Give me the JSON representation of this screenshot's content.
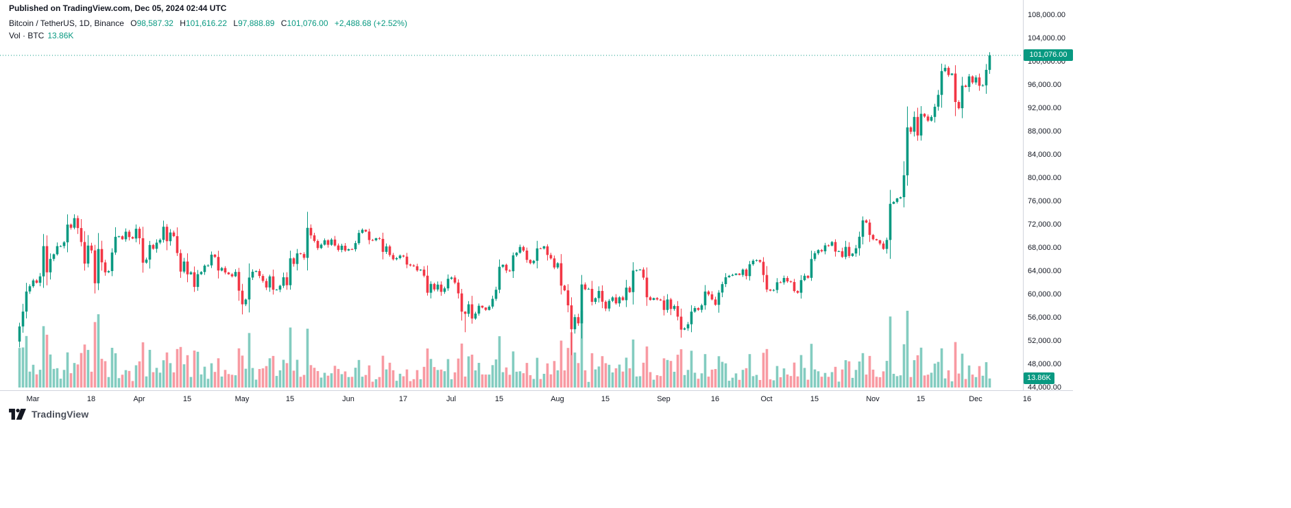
{
  "published_line": "Published on TradingView.com, Dec 05, 2024 02:44 UTC",
  "legend": {
    "title": "Bitcoin / TetherUS, 1D, Binance",
    "open_label": "O",
    "open": "98,587.32",
    "high_label": "H",
    "high": "101,616.22",
    "low_label": "L",
    "low": "97,888.89",
    "close_label": "C",
    "close": "101,076.00",
    "change": "+2,488.68 (+2.52%)"
  },
  "volume_legend": {
    "label": "Vol · BTC",
    "value": "13.86K"
  },
  "price_axis": {
    "current_price_label": "101,076.00"
  },
  "volume_axis": {
    "current_volume_label": "13.86K"
  },
  "footer": {
    "brand": "TradingView"
  },
  "colors": {
    "up": "#089981",
    "down": "#f23645",
    "up_vol": "rgba(8,153,129,0.5)",
    "down_vol": "rgba(242,54,69,0.5)",
    "text": "#131722",
    "axis_border": "#d1d4dc"
  },
  "chart_data": {
    "type": "candlestick",
    "title": "Bitcoin / TetherUS, 1D, Binance",
    "symbol": "Bitcoin / TetherUS",
    "interval": "1D",
    "exchange": "Binance",
    "start_date": "2024-02-26",
    "end_date": "2024-12-05",
    "ylim": [
      44000,
      109000
    ],
    "current_price": 101076.0,
    "last_candle": {
      "open": 98587.32,
      "high": 101616.22,
      "low": 97888.89,
      "close": 101076.0,
      "change": 2488.68,
      "change_pct": 2.52
    },
    "first_open": 51900,
    "daily_closes": [
      54500,
      57050,
      60500,
      61400,
      62400,
      62000,
      63100,
      68300,
      63800,
      66100,
      66900,
      68300,
      68300,
      68950,
      72000,
      71450,
      73100,
      71400,
      69000,
      65300,
      68390,
      67550,
      61900,
      67800,
      65500,
      63800,
      64000,
      67200,
      69900,
      69990,
      69470,
      70780,
      69850,
      69600,
      71280,
      69650,
      65450,
      65980,
      68500,
      67840,
      68900,
      69360,
      71620,
      69140,
      70630,
      70010,
      67100,
      63920,
      65650,
      63450,
      63800,
      61280,
      63470,
      63850,
      64940,
      64980,
      66820,
      66430,
      64100,
      64530,
      63760,
      63460,
      63110,
      63860,
      60640,
      58300,
      59120,
      62890,
      63890,
      64010,
      63160,
      62310,
      61190,
      63090,
      60800,
      60820,
      61480,
      62940,
      61580,
      66200,
      65230,
      67050,
      66930,
      66290,
      71440,
      70150,
      69180,
      67960,
      68540,
      69290,
      68510,
      69420,
      68400,
      67640,
      68360,
      67540,
      67760,
      67750,
      68810,
      70570,
      71100,
      70800,
      69340,
      69310,
      69650,
      69540,
      67310,
      68250,
      66770,
      66040,
      66230,
      66670,
      66500,
      65140,
      64970,
      64830,
      64130,
      64260,
      63210,
      60280,
      61800,
      60850,
      61680,
      60430,
      61030,
      62680,
      62900,
      62030,
      60170,
      57040,
      56660,
      58300,
      55850,
      56710,
      58050,
      57740,
      57340,
      57900,
      59230,
      60800,
      64740,
      65090,
      64100,
      63980,
      66710,
      67160,
      68150,
      67530,
      65930,
      65370,
      65780,
      67910,
      67900,
      68260,
      66780,
      66190,
      64630,
      65350,
      61500,
      60700,
      58120,
      54020,
      56100,
      55030,
      61710,
      60880,
      60950,
      58720,
      59350,
      60600,
      58740,
      57560,
      58890,
      59480,
      58460,
      59490,
      59010,
      61170,
      60380,
      64090,
      64170,
      64270,
      62880,
      59500,
      59040,
      59360,
      59120,
      58970,
      57330,
      59130,
      57490,
      58000,
      56180,
      53950,
      54160,
      54870,
      57040,
      57650,
      57340,
      58130,
      60500,
      60010,
      59130,
      58210,
      60310,
      61760,
      62940,
      63200,
      63350,
      63580,
      63340,
      64270,
      63150,
      65180,
      65790,
      65890,
      65600,
      63330,
      60840,
      60650,
      60750,
      62080,
      62060,
      62820,
      62230,
      62130,
      60580,
      60280,
      62450,
      63200,
      62850,
      66080,
      67070,
      67610,
      67400,
      68420,
      68380,
      69000,
      67350,
      67410,
      66430,
      68160,
      66600,
      67020,
      67930,
      69910,
      72720,
      72340,
      70210,
      69480,
      69290,
      68740,
      67810,
      69360,
      75570,
      75900,
      76500,
      76700,
      80470,
      88700,
      87950,
      90490,
      87300,
      91030,
      90560,
      89840,
      90500,
      92250,
      94290,
      98380,
      98930,
      97700,
      97950,
      93060,
      91990,
      95870,
      95650,
      97460,
      96410,
      97280,
      95850,
      95920,
      98587,
      101076
    ],
    "extremes": [
      {
        "day": 0,
        "low": 50900
      },
      {
        "day": 16,
        "high": 73770
      },
      {
        "day": 65,
        "low": 56550
      },
      {
        "day": 130,
        "low": 53500
      },
      {
        "day": 161,
        "low": 49550
      },
      {
        "day": 193,
        "low": 52550
      },
      {
        "day": 270,
        "high": 99500
      }
    ],
    "y_ticks": [
      108000,
      104000,
      100000,
      96000,
      92000,
      88000,
      84000,
      80000,
      76000,
      72000,
      68000,
      64000,
      60000,
      56000,
      52000,
      48000,
      44000
    ],
    "x_ticks": [
      {
        "label": "Mar",
        "day": 4
      },
      {
        "label": "18",
        "day": 21
      },
      {
        "label": "Apr",
        "day": 35
      },
      {
        "label": "15",
        "day": 49
      },
      {
        "label": "May",
        "day": 65
      },
      {
        "label": "15",
        "day": 79
      },
      {
        "label": "Jun",
        "day": 96
      },
      {
        "label": "17",
        "day": 112
      },
      {
        "label": "Jul",
        "day": 126
      },
      {
        "label": "15",
        "day": 140
      },
      {
        "label": "Aug",
        "day": 157
      },
      {
        "label": "15",
        "day": 171
      },
      {
        "label": "Sep",
        "day": 188
      },
      {
        "label": "16",
        "day": 203
      },
      {
        "label": "Oct",
        "day": 218
      },
      {
        "label": "15",
        "day": 232
      },
      {
        "label": "Nov",
        "day": 249
      },
      {
        "label": "15",
        "day": 263
      },
      {
        "label": "Dec",
        "day": 279
      },
      {
        "label": "16",
        "day": 294
      }
    ],
    "volume": {
      "unit": "K BTC",
      "last_k": 13.86,
      "approx_max_k": 118
    },
    "legend_note": "O98,587.32 H101,616.22 L97,888.89 C101,076.00 +2,488.68 (+2.52%)"
  }
}
